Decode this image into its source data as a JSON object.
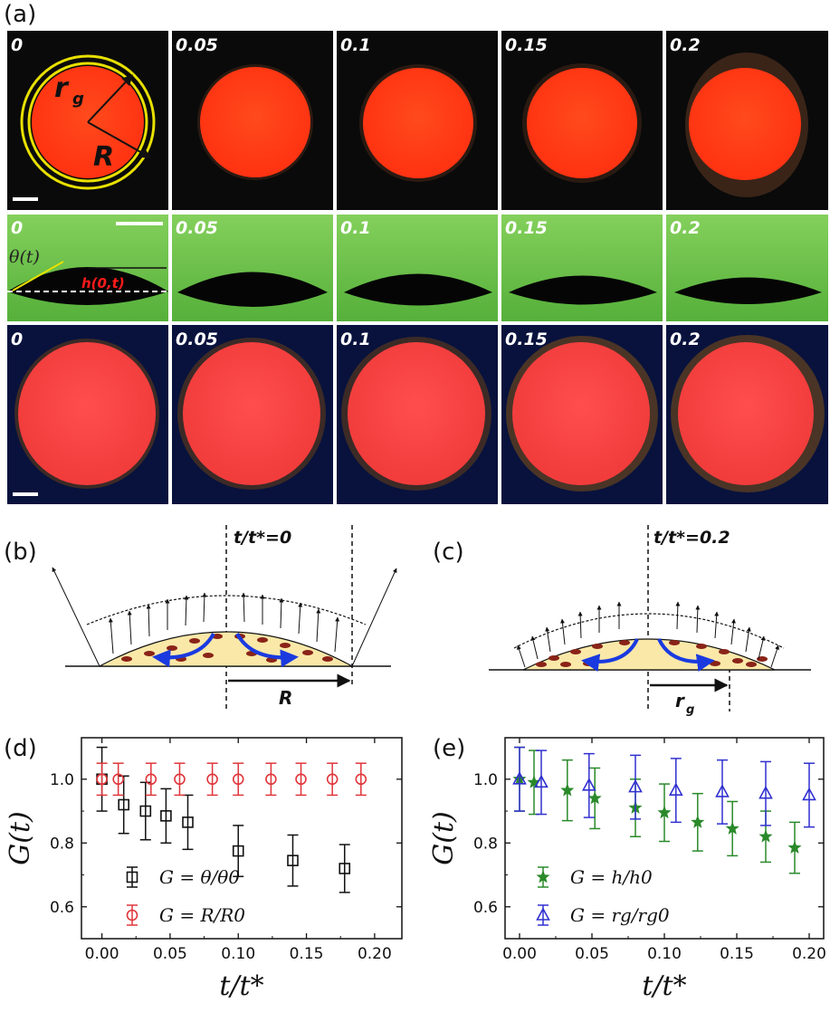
{
  "panel_labels": {
    "a": "(a)",
    "b": "(b)",
    "c": "(c)",
    "d": "(d)",
    "e": "(e)"
  },
  "row1": {
    "frame_labels": [
      "0",
      "0.05",
      "0.1",
      "0.15",
      "0.2"
    ],
    "annotation_rg": "r",
    "annotation_rg_sub": "g",
    "annotation_R": "R"
  },
  "row2": {
    "frame_labels": [
      "0",
      "0.05",
      "0.1",
      "0.15",
      "0.2"
    ],
    "annotation_theta": "θ(t)",
    "annotation_h": "h(0,t)"
  },
  "row3": {
    "frame_labels": [
      "0",
      "0.05",
      "0.1",
      "0.15",
      "0.2"
    ]
  },
  "panel_b": {
    "title": "t/t*=0",
    "label_R": "R"
  },
  "panel_c": {
    "title": "t/t*=0.2",
    "label_rg": "r",
    "label_rg_sub": "g"
  },
  "colors": {
    "drop_red": "#ff3a14",
    "green_bg": "#6ac24a",
    "navy_bg": "#08123d",
    "black": "#000000",
    "series_red": "#e0353a",
    "series_green": "#2a8a2a",
    "series_blue": "#3030d0"
  },
  "chart_data": [
    {
      "id": "d",
      "type": "scatter",
      "xlabel": "t/t*",
      "ylabel": "G(t)",
      "xlim": [
        -0.015,
        0.22
      ],
      "ylim": [
        0.5,
        1.13
      ],
      "xticks": [
        "0.00",
        "0.05",
        "0.10",
        "0.15",
        "0.20"
      ],
      "yticks": [
        "0.6",
        "0.8",
        "1.0"
      ],
      "series": [
        {
          "name": "G = θ/θ0",
          "marker": "square",
          "color": "#111111",
          "x": [
            0.0,
            0.016,
            0.032,
            0.047,
            0.063,
            0.1,
            0.14,
            0.178
          ],
          "y": [
            1.0,
            0.92,
            0.9,
            0.885,
            0.865,
            0.775,
            0.745,
            0.72
          ],
          "err": [
            0.1,
            0.09,
            0.09,
            0.085,
            0.085,
            0.08,
            0.08,
            0.075
          ]
        },
        {
          "name": "G = R/R0",
          "marker": "circle",
          "color": "#e0353a",
          "x": [
            0.0,
            0.012,
            0.036,
            0.057,
            0.081,
            0.1,
            0.124,
            0.146,
            0.169,
            0.19
          ],
          "y": [
            1.0,
            1.0,
            1.0,
            1.0,
            1.0,
            1.0,
            1.0,
            1.0,
            1.0,
            1.0
          ],
          "err": [
            0.05,
            0.05,
            0.05,
            0.05,
            0.05,
            0.05,
            0.05,
            0.05,
            0.05,
            0.05
          ]
        }
      ]
    },
    {
      "id": "e",
      "type": "scatter",
      "xlabel": "t/t*",
      "ylabel": "G(t)",
      "xlim": [
        -0.01,
        0.21
      ],
      "ylim": [
        0.5,
        1.13
      ],
      "xticks": [
        "0.00",
        "0.05",
        "0.10",
        "0.15",
        "0.20"
      ],
      "yticks": [
        "0.6",
        "0.8",
        "1.0"
      ],
      "series": [
        {
          "name": "G = h/h0",
          "marker": "star",
          "color": "#2a8a2a",
          "x": [
            0.0,
            0.01,
            0.033,
            0.052,
            0.08,
            0.1,
            0.123,
            0.147,
            0.17,
            0.19
          ],
          "y": [
            1.0,
            0.99,
            0.965,
            0.94,
            0.91,
            0.895,
            0.865,
            0.845,
            0.82,
            0.785
          ],
          "err": [
            0.1,
            0.1,
            0.095,
            0.095,
            0.09,
            0.09,
            0.09,
            0.085,
            0.08,
            0.08
          ]
        },
        {
          "name": "G = rg/rg0",
          "marker": "triangle",
          "color": "#3030d0",
          "x": [
            0.0,
            0.015,
            0.048,
            0.08,
            0.108,
            0.14,
            0.17,
            0.2
          ],
          "y": [
            1.0,
            0.99,
            0.98,
            0.975,
            0.965,
            0.96,
            0.955,
            0.95
          ],
          "err": [
            0.1,
            0.1,
            0.1,
            0.1,
            0.1,
            0.1,
            0.1,
            0.1
          ]
        }
      ]
    }
  ]
}
